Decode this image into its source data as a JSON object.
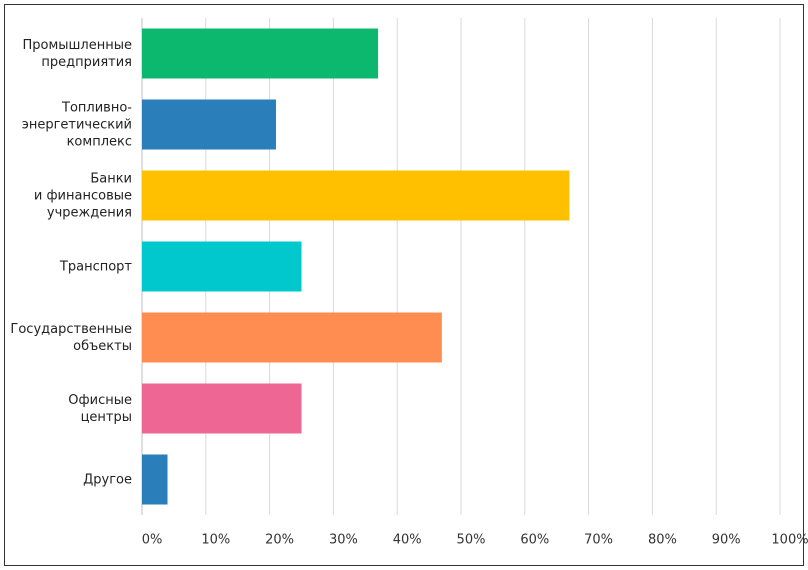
{
  "chart_data": {
    "type": "bar",
    "orientation": "horizontal",
    "categories": [
      "Промышленные\nпредприятия",
      "Топливно-\nэнергетический\nкомплекс",
      "Банки\nи финансовые\nучреждения",
      "Транспорт",
      "Государственные\nобъекты",
      "Офисные\nцентры",
      "Другое"
    ],
    "values": [
      37,
      21,
      67,
      25,
      47,
      25,
      4
    ],
    "colors": [
      "#0bb86e",
      "#2a7fba",
      "#ffc000",
      "#00c8cc",
      "#ff8c50",
      "#ee6693",
      "#2a7fba"
    ],
    "xlim": [
      0,
      100
    ],
    "xticks": [
      {
        "value": 0,
        "label": "0%"
      },
      {
        "value": 10,
        "label": "10%"
      },
      {
        "value": 20,
        "label": "20%"
      },
      {
        "value": 30,
        "label": "30%"
      },
      {
        "value": 40,
        "label": "40%"
      },
      {
        "value": 50,
        "label": "50%"
      },
      {
        "value": 60,
        "label": "60%"
      },
      {
        "value": 70,
        "label": "70%"
      },
      {
        "value": 80,
        "label": "80%"
      },
      {
        "value": 90,
        "label": "90%"
      },
      {
        "value": 100,
        "label": "100%"
      }
    ],
    "grid": true
  }
}
